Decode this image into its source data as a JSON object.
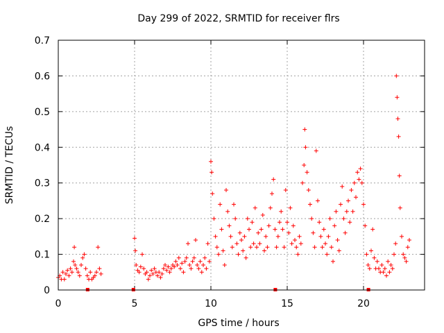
{
  "chart_data": {
    "type": "scatter",
    "title": "Day 299 of 2022, SRMTID for receiver flrs",
    "xlabel": "GPS time / hours",
    "ylabel": "SRMTID / TECUs",
    "xlim": [
      0,
      24
    ],
    "ylim": [
      0,
      0.7
    ],
    "x_ticks": [
      0,
      5,
      10,
      15,
      20
    ],
    "y_ticks": [
      0,
      0.1,
      0.2,
      0.3,
      0.4,
      0.5,
      0.6,
      0.7
    ],
    "x_tick_labels": [
      "0",
      "5",
      "10",
      "15",
      "20"
    ],
    "y_tick_labels": [
      "0",
      "0.1",
      "0.2",
      "0.3",
      "0.4",
      "0.5",
      "0.6",
      "0.7"
    ],
    "grid": true,
    "marker": "+",
    "color": "#ff0000",
    "gap_markers_x": [
      1.9,
      4.9,
      14.2,
      20.3
    ],
    "series": [
      {
        "name": "SRMTID",
        "points": [
          [
            0.0,
            0.035
          ],
          [
            0.1,
            0.04
          ],
          [
            0.2,
            0.03
          ],
          [
            0.3,
            0.05
          ],
          [
            0.4,
            0.03
          ],
          [
            0.5,
            0.045
          ],
          [
            0.6,
            0.055
          ],
          [
            0.7,
            0.04
          ],
          [
            0.8,
            0.06
          ],
          [
            0.9,
            0.05
          ],
          [
            1.0,
            0.08
          ],
          [
            1.05,
            0.12
          ],
          [
            1.1,
            0.07
          ],
          [
            1.2,
            0.06
          ],
          [
            1.3,
            0.05
          ],
          [
            1.4,
            0.04
          ],
          [
            1.5,
            0.07
          ],
          [
            1.6,
            0.09
          ],
          [
            1.7,
            0.1
          ],
          [
            1.8,
            0.06
          ],
          [
            1.9,
            0.04
          ],
          [
            2.0,
            0.03
          ],
          [
            2.1,
            0.05
          ],
          [
            2.2,
            0.03
          ],
          [
            2.3,
            0.035
          ],
          [
            2.4,
            0.04
          ],
          [
            2.5,
            0.05
          ],
          [
            2.6,
            0.12
          ],
          [
            2.7,
            0.06
          ],
          [
            2.8,
            0.045
          ],
          [
            5.0,
            0.145
          ],
          [
            5.05,
            0.11
          ],
          [
            5.1,
            0.07
          ],
          [
            5.2,
            0.055
          ],
          [
            5.3,
            0.05
          ],
          [
            5.4,
            0.065
          ],
          [
            5.5,
            0.1
          ],
          [
            5.6,
            0.06
          ],
          [
            5.7,
            0.045
          ],
          [
            5.8,
            0.05
          ],
          [
            5.9,
            0.03
          ],
          [
            6.0,
            0.04
          ],
          [
            6.1,
            0.055
          ],
          [
            6.2,
            0.045
          ],
          [
            6.3,
            0.06
          ],
          [
            6.4,
            0.05
          ],
          [
            6.5,
            0.04
          ],
          [
            6.6,
            0.05
          ],
          [
            6.7,
            0.035
          ],
          [
            6.8,
            0.045
          ],
          [
            6.9,
            0.06
          ],
          [
            7.0,
            0.07
          ],
          [
            7.1,
            0.055
          ],
          [
            7.2,
            0.065
          ],
          [
            7.3,
            0.05
          ],
          [
            7.4,
            0.06
          ],
          [
            7.5,
            0.07
          ],
          [
            7.6,
            0.065
          ],
          [
            7.7,
            0.08
          ],
          [
            7.8,
            0.07
          ],
          [
            7.9,
            0.09
          ],
          [
            8.0,
            0.06
          ],
          [
            8.1,
            0.075
          ],
          [
            8.2,
            0.05
          ],
          [
            8.3,
            0.08
          ],
          [
            8.4,
            0.09
          ],
          [
            8.5,
            0.13
          ],
          [
            8.6,
            0.07
          ],
          [
            8.7,
            0.06
          ],
          [
            8.8,
            0.08
          ],
          [
            8.9,
            0.09
          ],
          [
            9.0,
            0.14
          ],
          [
            9.1,
            0.07
          ],
          [
            9.2,
            0.06
          ],
          [
            9.3,
            0.08
          ],
          [
            9.4,
            0.05
          ],
          [
            9.5,
            0.07
          ],
          [
            9.6,
            0.09
          ],
          [
            9.7,
            0.06
          ],
          [
            9.8,
            0.13
          ],
          [
            9.9,
            0.08
          ],
          [
            10.0,
            0.36
          ],
          [
            10.05,
            0.33
          ],
          [
            10.1,
            0.27
          ],
          [
            10.2,
            0.2
          ],
          [
            10.3,
            0.15
          ],
          [
            10.4,
            0.12
          ],
          [
            10.5,
            0.1
          ],
          [
            10.6,
            0.24
          ],
          [
            10.7,
            0.17
          ],
          [
            10.8,
            0.11
          ],
          [
            10.9,
            0.07
          ],
          [
            11.0,
            0.28
          ],
          [
            11.1,
            0.22
          ],
          [
            11.2,
            0.18
          ],
          [
            11.3,
            0.15
          ],
          [
            11.4,
            0.12
          ],
          [
            11.5,
            0.24
          ],
          [
            11.6,
            0.2
          ],
          [
            11.7,
            0.13
          ],
          [
            11.8,
            0.1
          ],
          [
            11.9,
            0.16
          ],
          [
            12.0,
            0.14
          ],
          [
            12.1,
            0.11
          ],
          [
            12.2,
            0.15
          ],
          [
            12.3,
            0.09
          ],
          [
            12.4,
            0.2
          ],
          [
            12.5,
            0.17
          ],
          [
            12.6,
            0.12
          ],
          [
            12.7,
            0.19
          ],
          [
            12.8,
            0.13
          ],
          [
            12.9,
            0.23
          ],
          [
            13.0,
            0.12
          ],
          [
            13.1,
            0.16
          ],
          [
            13.2,
            0.13
          ],
          [
            13.3,
            0.17
          ],
          [
            13.4,
            0.21
          ],
          [
            13.5,
            0.11
          ],
          [
            13.6,
            0.15
          ],
          [
            13.7,
            0.12
          ],
          [
            13.8,
            0.18
          ],
          [
            13.9,
            0.23
          ],
          [
            14.0,
            0.27
          ],
          [
            14.1,
            0.31
          ],
          [
            14.2,
            0.17
          ],
          [
            14.3,
            0.12
          ],
          [
            14.4,
            0.15
          ],
          [
            14.5,
            0.19
          ],
          [
            14.6,
            0.22
          ],
          [
            14.7,
            0.17
          ],
          [
            14.8,
            0.12
          ],
          [
            14.9,
            0.28
          ],
          [
            15.0,
            0.19
          ],
          [
            15.1,
            0.16
          ],
          [
            15.2,
            0.23
          ],
          [
            15.3,
            0.13
          ],
          [
            15.4,
            0.18
          ],
          [
            15.5,
            0.14
          ],
          [
            15.6,
            0.12
          ],
          [
            15.7,
            0.1
          ],
          [
            15.8,
            0.15
          ],
          [
            15.9,
            0.13
          ],
          [
            16.0,
            0.3
          ],
          [
            16.1,
            0.35
          ],
          [
            16.15,
            0.45
          ],
          [
            16.2,
            0.4
          ],
          [
            16.3,
            0.33
          ],
          [
            16.4,
            0.28
          ],
          [
            16.5,
            0.24
          ],
          [
            16.6,
            0.2
          ],
          [
            16.7,
            0.16
          ],
          [
            16.8,
            0.12
          ],
          [
            16.9,
            0.39
          ],
          [
            17.0,
            0.25
          ],
          [
            17.1,
            0.19
          ],
          [
            17.2,
            0.15
          ],
          [
            17.3,
            0.12
          ],
          [
            17.4,
            0.17
          ],
          [
            17.5,
            0.13
          ],
          [
            17.6,
            0.1
          ],
          [
            17.7,
            0.15
          ],
          [
            17.8,
            0.2
          ],
          [
            17.9,
            0.12
          ],
          [
            18.0,
            0.08
          ],
          [
            18.1,
            0.18
          ],
          [
            18.2,
            0.22
          ],
          [
            18.3,
            0.14
          ],
          [
            18.4,
            0.11
          ],
          [
            18.5,
            0.24
          ],
          [
            18.6,
            0.29
          ],
          [
            18.7,
            0.2
          ],
          [
            18.8,
            0.16
          ],
          [
            18.9,
            0.22
          ],
          [
            19.0,
            0.25
          ],
          [
            19.1,
            0.19
          ],
          [
            19.2,
            0.28
          ],
          [
            19.3,
            0.22
          ],
          [
            19.4,
            0.3
          ],
          [
            19.5,
            0.26
          ],
          [
            19.6,
            0.33
          ],
          [
            19.7,
            0.31
          ],
          [
            19.8,
            0.34
          ],
          [
            19.9,
            0.3
          ],
          [
            20.0,
            0.24
          ],
          [
            20.1,
            0.18
          ],
          [
            20.2,
            0.1
          ],
          [
            20.3,
            0.07
          ],
          [
            20.4,
            0.06
          ],
          [
            20.5,
            0.11
          ],
          [
            20.6,
            0.17
          ],
          [
            20.7,
            0.09
          ],
          [
            20.8,
            0.06
          ],
          [
            20.9,
            0.08
          ],
          [
            21.0,
            0.06
          ],
          [
            21.1,
            0.05
          ],
          [
            21.2,
            0.07
          ],
          [
            21.3,
            0.05
          ],
          [
            21.4,
            0.06
          ],
          [
            21.5,
            0.04
          ],
          [
            21.6,
            0.08
          ],
          [
            21.7,
            0.05
          ],
          [
            21.8,
            0.07
          ],
          [
            21.9,
            0.06
          ],
          [
            22.0,
            0.1
          ],
          [
            22.1,
            0.13
          ],
          [
            22.15,
            0.6
          ],
          [
            22.2,
            0.54
          ],
          [
            22.25,
            0.48
          ],
          [
            22.3,
            0.43
          ],
          [
            22.35,
            0.32
          ],
          [
            22.4,
            0.23
          ],
          [
            22.5,
            0.15
          ],
          [
            22.6,
            0.1
          ],
          [
            22.7,
            0.09
          ],
          [
            22.8,
            0.08
          ],
          [
            22.9,
            0.12
          ],
          [
            23.0,
            0.14
          ]
        ]
      }
    ]
  }
}
